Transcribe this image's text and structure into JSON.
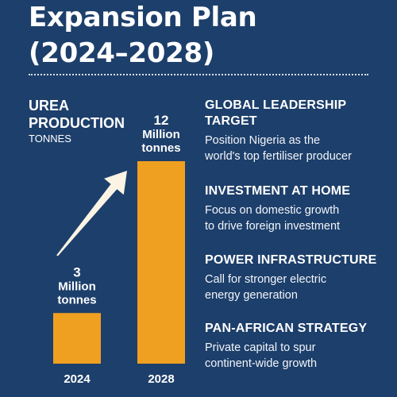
{
  "title_line1": "Expansion Plan",
  "title_line2": "(2024–2028)",
  "chart_data": {
    "type": "bar",
    "title": "UREA PRODUCTION",
    "title_line1": "UREA",
    "title_line2": "PRODUCTION",
    "unit": "TONNES",
    "categories": [
      "2024",
      "2028"
    ],
    "values": [
      3,
      12
    ],
    "value_labels": [
      {
        "number": "3",
        "line2": "Million",
        "line3": "tonnes"
      },
      {
        "number": "12",
        "line2": "Million",
        "line3": "tonnes"
      }
    ],
    "ylim": [
      0,
      12
    ],
    "bar_color": "#f0a020",
    "arrow_color": "#fbf4e4"
  },
  "items": [
    {
      "heading": "GLOBAL LEADERSHIP TARGET",
      "heading_line1": "GLOBAL LEADERSHIP",
      "heading_line2": "TARGET",
      "text_line1": "Position Nigeria as the",
      "text_line2": "world's top fertiliser producer"
    },
    {
      "heading": "INVESTMENT AT HOME",
      "heading_line1": "INVESTMENT AT HOME",
      "heading_line2": "",
      "text_line1": "Focus on domestic growth",
      "text_line2": "to drive foreign investment"
    },
    {
      "heading": "POWER INFRASTRUCTURE",
      "heading_line1": "POWER INFRASTRUCTURE",
      "heading_line2": "",
      "text_line1": "Call for stronger electric",
      "text_line2": "energy generation"
    },
    {
      "heading": "PAN-AFRICAN STRATEGY",
      "heading_line1": "PAN-AFRICAN STRATEGY",
      "heading_line2": "",
      "text_line1": "Private capital to spur",
      "text_line2": "continent-wide growth"
    }
  ],
  "colors": {
    "background": "#1d3f6b",
    "accent": "#f0a020",
    "text": "#ffffff"
  }
}
